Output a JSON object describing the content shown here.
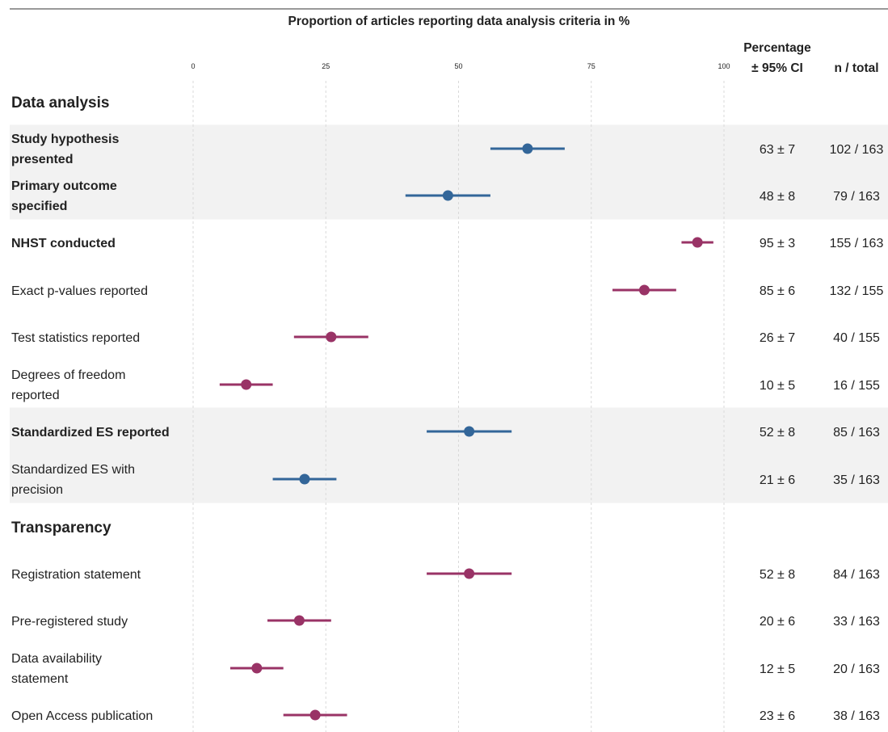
{
  "chart_data": {
    "type": "scatter",
    "title": "Proportion of articles reporting data analysis criteria in %",
    "xlim": [
      0,
      100
    ],
    "xticks": [
      "0",
      "25",
      "50",
      "75",
      "100"
    ],
    "grid": true,
    "column_headers": {
      "percentage_line1": "Percentage",
      "percentage_line2": "± 95% CI",
      "n_total": "n / total"
    },
    "colors": {
      "blue": "#336699",
      "magenta": "#993366",
      "band": "#f2f2f2"
    },
    "sections": [
      {
        "heading": "Data analysis",
        "rows": [
          {
            "label": [
              "Study hypothesis",
              "presented"
            ],
            "bold": true,
            "value": 63,
            "ci": 7,
            "pct_text": "63 ± 7",
            "n_text": "102 / 163",
            "color": "blue",
            "shaded": true
          },
          {
            "label": [
              "Primary outcome",
              "specified"
            ],
            "bold": true,
            "value": 48,
            "ci": 8,
            "pct_text": "48 ± 8",
            "n_text": "79 / 163",
            "color": "blue",
            "shaded": true
          },
          {
            "label": [
              "NHST conducted"
            ],
            "bold": true,
            "value": 95,
            "ci": 3,
            "pct_text": "95 ± 3",
            "n_text": "155 / 163",
            "color": "magenta",
            "shaded": false
          },
          {
            "label": [
              "Exact p-values reported"
            ],
            "bold": false,
            "value": 85,
            "ci": 6,
            "pct_text": "85 ± 6",
            "n_text": "132 / 155",
            "color": "magenta",
            "shaded": false
          },
          {
            "label": [
              "Test statistics reported"
            ],
            "bold": false,
            "value": 26,
            "ci": 7,
            "pct_text": "26 ± 7",
            "n_text": "40 / 155",
            "color": "magenta",
            "shaded": false
          },
          {
            "label": [
              "Degrees of freedom",
              "reported"
            ],
            "bold": false,
            "value": 10,
            "ci": 5,
            "pct_text": "10 ± 5",
            "n_text": "16 / 155",
            "color": "magenta",
            "shaded": false
          },
          {
            "label": [
              "Standardized ES reported"
            ],
            "bold": true,
            "value": 52,
            "ci": 8,
            "pct_text": "52 ± 8",
            "n_text": "85 / 163",
            "color": "blue",
            "shaded": true
          },
          {
            "label": [
              "Standardized ES with",
              "precision"
            ],
            "bold": false,
            "value": 21,
            "ci": 6,
            "pct_text": "21 ± 6",
            "n_text": "35 / 163",
            "color": "blue",
            "shaded": true
          }
        ]
      },
      {
        "heading": "Transparency",
        "rows": [
          {
            "label": [
              "Registration statement"
            ],
            "bold": false,
            "value": 52,
            "ci": 8,
            "pct_text": "52 ± 8",
            "n_text": "84 / 163",
            "color": "magenta",
            "shaded": false
          },
          {
            "label": [
              "Pre-registered study"
            ],
            "bold": false,
            "value": 20,
            "ci": 6,
            "pct_text": "20 ± 6",
            "n_text": "33 / 163",
            "color": "magenta",
            "shaded": false
          },
          {
            "label": [
              "Data availability",
              "statement"
            ],
            "bold": false,
            "value": 12,
            "ci": 5,
            "pct_text": "12 ± 5",
            "n_text": "20 / 163",
            "color": "magenta",
            "shaded": false
          },
          {
            "label": [
              "Open Access publication"
            ],
            "bold": false,
            "value": 23,
            "ci": 6,
            "pct_text": "23 ± 6",
            "n_text": "38 / 163",
            "color": "magenta",
            "shaded": false
          }
        ]
      }
    ]
  }
}
